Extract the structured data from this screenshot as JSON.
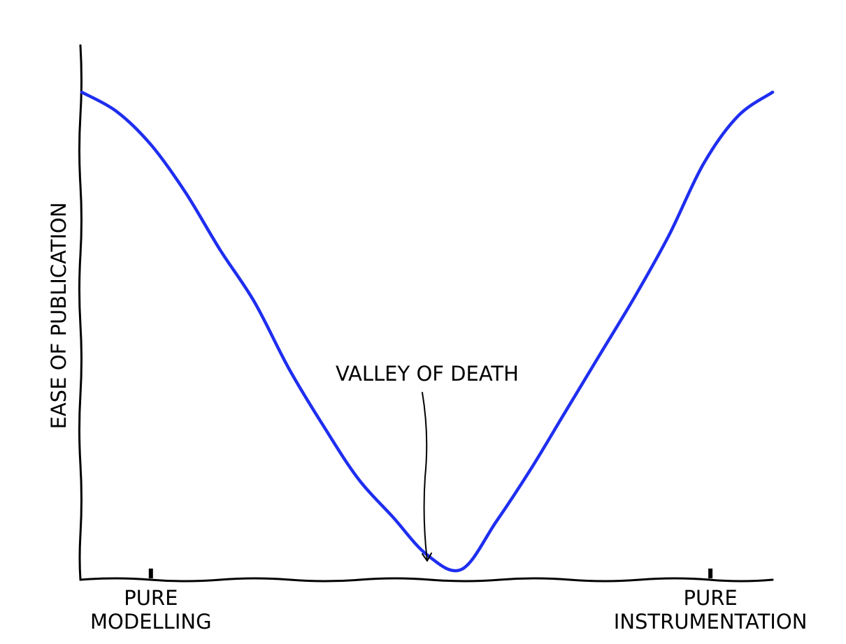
{
  "chart_data": {
    "type": "line",
    "ylabel": "EASE OF PUBLICATION",
    "xlabel": "",
    "xlim": [
      0,
      1
    ],
    "ylim": [
      0,
      1
    ],
    "grid": false,
    "tick_labels": [
      {
        "x": 0.1,
        "lines": [
          "PURE",
          "MODELLING"
        ]
      },
      {
        "x": 0.91,
        "lines": [
          "PURE",
          "INSTRUMENTATION"
        ]
      }
    ],
    "series": [
      {
        "color": "#1f2ef0",
        "x": [
          0.0,
          0.05,
          0.1,
          0.15,
          0.2,
          0.25,
          0.3,
          0.35,
          0.4,
          0.45,
          0.5,
          0.55,
          0.6,
          0.65,
          0.7,
          0.75,
          0.8,
          0.85,
          0.9,
          0.95,
          1.0
        ],
        "y": [
          1.0,
          0.96,
          0.89,
          0.79,
          0.67,
          0.56,
          0.42,
          0.3,
          0.19,
          0.11,
          0.03,
          0.0,
          0.1,
          0.21,
          0.33,
          0.45,
          0.57,
          0.7,
          0.85,
          0.95,
          1.0
        ]
      }
    ],
    "annotations": [
      {
        "text": "VALLEY OF DEATH",
        "x": 0.5,
        "y": 0.0
      }
    ]
  }
}
